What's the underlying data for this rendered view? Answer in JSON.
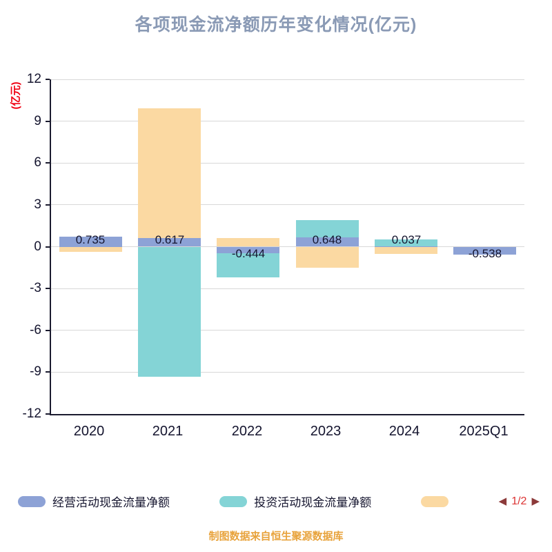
{
  "title": "各项现金流净额历年变化情况(亿元)",
  "y_unit": "(亿元)",
  "caption": "制图数据来自恒生聚源数据库",
  "legend": {
    "items": [
      {
        "label": "经营活动现金流量净额",
        "color": "#8DA2D6"
      },
      {
        "label": "投资活动现金流量净额",
        "color": "#84D4D6"
      },
      {
        "label": "",
        "color": "#FBD9A2"
      }
    ],
    "pager": {
      "prev": "◀",
      "text": "1/2",
      "next": "▶"
    }
  },
  "colors": {
    "title": "#8A9AB5",
    "axis_text": "#14142E",
    "axis_line": "#1A1A2E",
    "grid": "#D8D8D8",
    "y_unit": "#F00012",
    "caption": "#E8A33C",
    "pager_arrow": "#8C3A3A",
    "pager_text": "#DC3232"
  },
  "chart_data": {
    "type": "bar",
    "title": "各项现金流净额历年变化情况(亿元)",
    "ylabel": "(亿元)",
    "categories": [
      "2020",
      "2021",
      "2022",
      "2023",
      "2024",
      "2025Q1"
    ],
    "series": [
      {
        "name": "经营活动现金流量净额",
        "color": "#8DA2D6",
        "values": [
          0.735,
          0.617,
          -0.444,
          0.648,
          0.037,
          -0.538
        ]
      },
      {
        "name": "投资活动现金流量净额",
        "color": "#84D4D6",
        "values": [
          0,
          -9.3,
          -2.2,
          1.9,
          0.5,
          0
        ]
      },
      {
        "name": "",
        "color": "#FBD9A2",
        "values": [
          -0.35,
          9.9,
          0.6,
          -1.5,
          -0.5,
          -0.25
        ]
      }
    ],
    "labels": [
      "0.735",
      "0.617",
      "-0.444",
      "0.648",
      "0.037",
      "-0.538"
    ],
    "ylim": [
      -12,
      12
    ],
    "y_ticks": [
      12,
      9,
      6,
      3,
      0,
      -3,
      -6,
      -9,
      -12
    ],
    "grid": true,
    "legend_position": "bottom"
  }
}
